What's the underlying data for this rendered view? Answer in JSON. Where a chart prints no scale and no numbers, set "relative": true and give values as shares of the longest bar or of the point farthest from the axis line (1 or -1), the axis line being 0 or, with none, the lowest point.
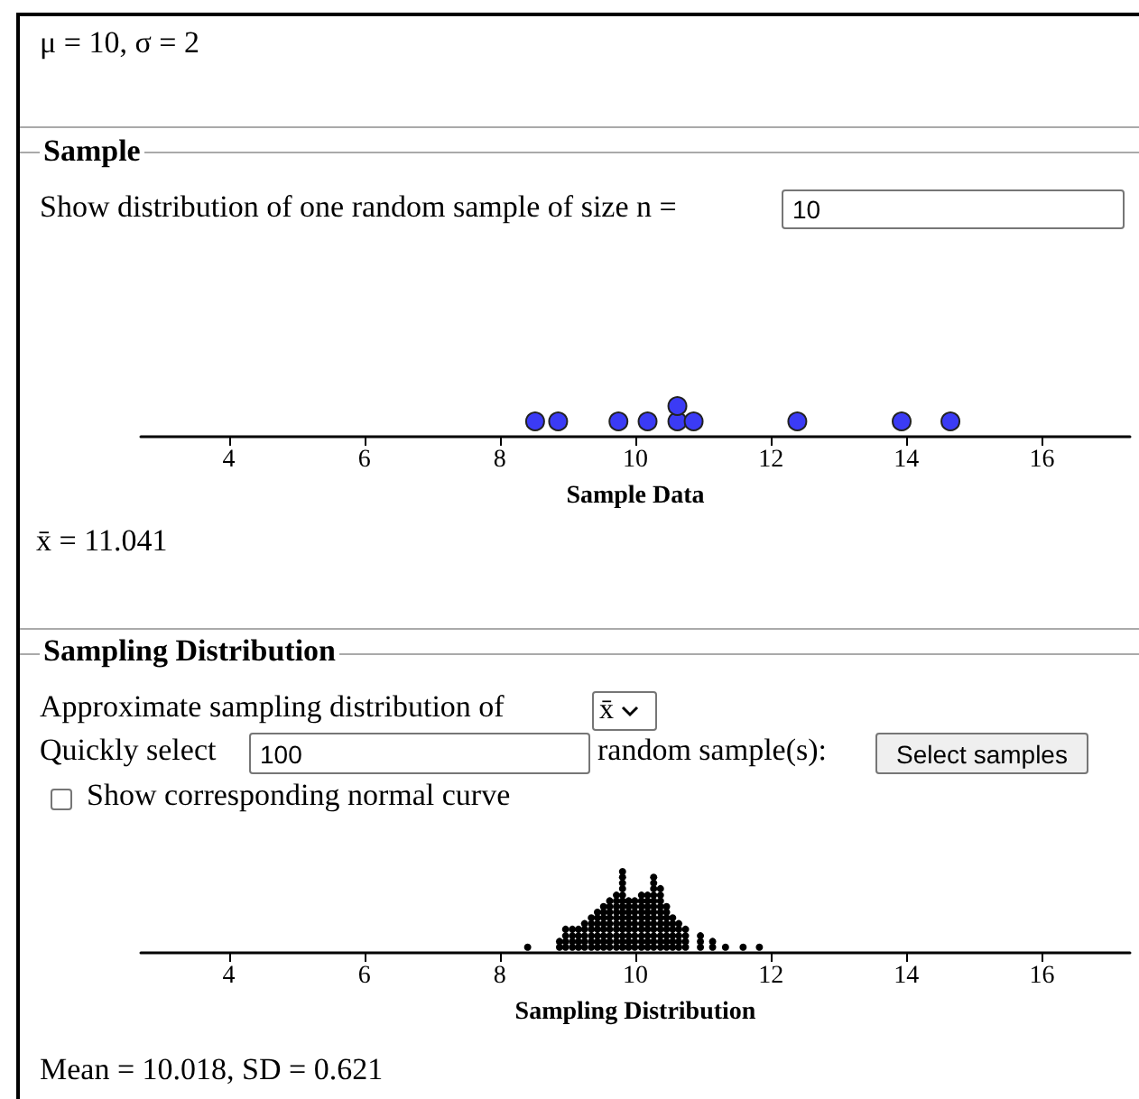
{
  "chart_data": [
    {
      "type": "scatter",
      "title": "Sample",
      "xlabel": "Sample Data",
      "annotations": [
        "μ = 10, σ = 2",
        "Show distribution of one random sample of size n =",
        "10",
        "x̄ = 11.041"
      ],
      "marker": "circle",
      "relative": true,
      "color": "#3b3bf5",
      "xlim": [
        2.7,
        17.3
      ],
      "xticks": [
        4,
        6,
        8,
        10,
        12,
        14,
        16
      ],
      "x": [
        8.52,
        8.86,
        9.75,
        10.18,
        10.62,
        10.62,
        10.86,
        12.39,
        13.93,
        14.65
      ],
      "values": [
        0.5,
        0.5,
        0.5,
        0.5,
        0.5,
        1,
        0.5,
        0.5,
        0.5,
        0.5
      ]
    },
    {
      "type": "scatter",
      "title": "Sampling Distribution",
      "xlabel": "Sampling Distribution",
      "annotations": [
        "Approximate sampling distribution of",
        "x̄",
        "Quickly select",
        "100",
        "random sample(s):",
        "Select samples",
        "Show corresponding normal curve",
        "Mean = 10.018, SD = 0.621"
      ],
      "marker": "circle",
      "relative": true,
      "color": "#000000",
      "xlim": [
        2.7,
        17.3
      ],
      "xticks": [
        4,
        6,
        8,
        10,
        12,
        14,
        16
      ],
      "x": [
        8.41,
        8.88,
        8.88,
        8.97,
        8.97,
        8.97,
        8.97,
        9.07,
        9.07,
        9.07,
        9.07,
        9.16,
        9.16,
        9.16,
        9.16,
        9.25,
        9.25,
        9.25,
        9.25,
        9.25,
        9.35,
        9.35,
        9.35,
        9.35,
        9.35,
        9.35,
        9.44,
        9.44,
        9.44,
        9.44,
        9.44,
        9.44,
        9.44,
        9.53,
        9.53,
        9.53,
        9.53,
        9.53,
        9.53,
        9.53,
        9.53,
        9.62,
        9.62,
        9.62,
        9.62,
        9.62,
        9.62,
        9.62,
        9.62,
        9.62,
        9.72,
        9.72,
        9.72,
        9.72,
        9.72,
        9.72,
        9.72,
        9.72,
        9.72,
        9.72,
        9.81,
        9.81,
        9.81,
        9.81,
        9.81,
        9.81,
        9.81,
        9.81,
        9.81,
        9.81,
        9.81,
        9.81,
        9.81,
        9.81,
        9.9,
        9.9,
        9.9,
        9.9,
        9.9,
        9.9,
        9.9,
        9.9,
        9.9,
        9.99,
        9.99,
        9.99,
        9.99,
        9.99,
        9.99,
        9.99,
        9.99,
        9.99,
        10.09,
        10.09,
        10.09,
        10.09,
        10.09,
        10.09,
        10.09,
        10.09,
        10.09,
        10.09,
        10.18,
        10.18,
        10.18,
        10.18,
        10.18,
        10.18,
        10.18,
        10.18,
        10.18,
        10.18,
        10.27,
        10.27,
        10.27,
        10.27,
        10.27,
        10.27,
        10.27,
        10.27,
        10.27,
        10.27,
        10.27,
        10.27,
        10.27,
        10.37,
        10.37,
        10.37,
        10.37,
        10.37,
        10.37,
        10.37,
        10.37,
        10.37,
        10.37,
        10.37,
        10.46,
        10.46,
        10.46,
        10.46,
        10.46,
        10.46,
        10.46,
        10.46,
        10.55,
        10.55,
        10.55,
        10.55,
        10.55,
        10.55,
        10.64,
        10.64,
        10.64,
        10.64,
        10.64,
        10.74,
        10.74,
        10.74,
        10.74,
        10.96,
        10.96,
        10.96,
        11.14,
        11.14,
        11.33,
        11.59,
        11.83
      ],
      "values": [
        0.07,
        0.07,
        0.14,
        0.07,
        0.14,
        0.21,
        0.29,
        0.07,
        0.14,
        0.21,
        0.29,
        0.07,
        0.14,
        0.21,
        0.29,
        0.07,
        0.14,
        0.21,
        0.29,
        0.36,
        0.07,
        0.14,
        0.21,
        0.29,
        0.36,
        0.43,
        0.07,
        0.14,
        0.21,
        0.29,
        0.36,
        0.43,
        0.5,
        0.07,
        0.14,
        0.21,
        0.29,
        0.36,
        0.43,
        0.5,
        0.57,
        0.07,
        0.14,
        0.21,
        0.29,
        0.36,
        0.43,
        0.5,
        0.57,
        0.64,
        0.07,
        0.14,
        0.21,
        0.29,
        0.36,
        0.43,
        0.5,
        0.57,
        0.64,
        0.71,
        0.07,
        0.14,
        0.21,
        0.29,
        0.36,
        0.43,
        0.5,
        0.57,
        0.64,
        0.71,
        0.79,
        0.86,
        0.93,
        1,
        0.07,
        0.14,
        0.21,
        0.29,
        0.36,
        0.43,
        0.5,
        0.57,
        0.64,
        0.07,
        0.14,
        0.21,
        0.29,
        0.36,
        0.43,
        0.5,
        0.57,
        0.64,
        0.07,
        0.14,
        0.21,
        0.29,
        0.36,
        0.43,
        0.5,
        0.57,
        0.64,
        0.71,
        0.07,
        0.14,
        0.21,
        0.29,
        0.36,
        0.43,
        0.5,
        0.57,
        0.64,
        0.71,
        0.07,
        0.14,
        0.21,
        0.29,
        0.36,
        0.43,
        0.5,
        0.57,
        0.64,
        0.71,
        0.79,
        0.86,
        0.93,
        0.07,
        0.14,
        0.21,
        0.29,
        0.36,
        0.43,
        0.5,
        0.57,
        0.64,
        0.71,
        0.79,
        0.07,
        0.14,
        0.21,
        0.29,
        0.36,
        0.43,
        0.5,
        0.57,
        0.07,
        0.14,
        0.21,
        0.29,
        0.36,
        0.43,
        0.07,
        0.14,
        0.21,
        0.29,
        0.36,
        0.07,
        0.14,
        0.21,
        0.29,
        0.07,
        0.14,
        0.21,
        0.07,
        0.14,
        0.07,
        0.07,
        0.07
      ]
    }
  ]
}
